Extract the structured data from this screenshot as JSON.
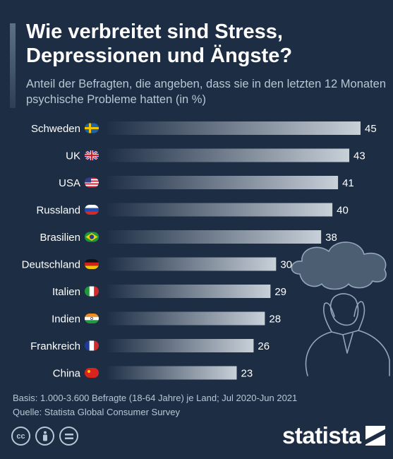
{
  "header": {
    "title": "Wie verbreitet sind Stress, Depressionen und Ängste?",
    "subtitle": "Anteil der Befragten, die angeben, dass sie in den letzten 12 Monaten psychische Probleme hatten (in %)"
  },
  "chart_data": {
    "type": "bar",
    "orientation": "horizontal",
    "title": "Wie verbreitet sind Stress, Depressionen und Ängste?",
    "subtitle": "Anteil der Befragten, die angeben, dass sie in den letzten 12 Monaten psychische Probleme hatten (in %)",
    "categories": [
      "Schweden",
      "UK",
      "USA",
      "Russland",
      "Brasilien",
      "Deutschland",
      "Italien",
      "Indien",
      "Frankreich",
      "China"
    ],
    "flags": [
      "flag-sweden-icon",
      "flag-uk-icon",
      "flag-usa-icon",
      "flag-russia-icon",
      "flag-brazil-icon",
      "flag-germany-icon",
      "flag-italy-icon",
      "flag-india-icon",
      "flag-france-icon",
      "flag-china-icon"
    ],
    "values": [
      45,
      43,
      41,
      40,
      38,
      30,
      29,
      28,
      26,
      23
    ],
    "xlim": [
      0,
      45
    ],
    "grid": false,
    "data_labels": true
  },
  "footer": {
    "basis": "Basis: 1.000-3.600 Befragte (18-64 Jahre) je Land; Jul 2020-Jun 2021",
    "source": "Quelle: Statista Global Consumer Survey"
  },
  "license_icons": [
    "cc-icon",
    "by-person-icon",
    "nd-equals-icon"
  ],
  "brand": {
    "name": "statista",
    "logo_icon": "statista-logo-icon"
  },
  "colors": {
    "background": "#1c2d44",
    "bar_start": "#1f2f46",
    "bar_end": "#c8d0d8",
    "text": "#ffffff",
    "muted_text": "#b9c6d3"
  }
}
